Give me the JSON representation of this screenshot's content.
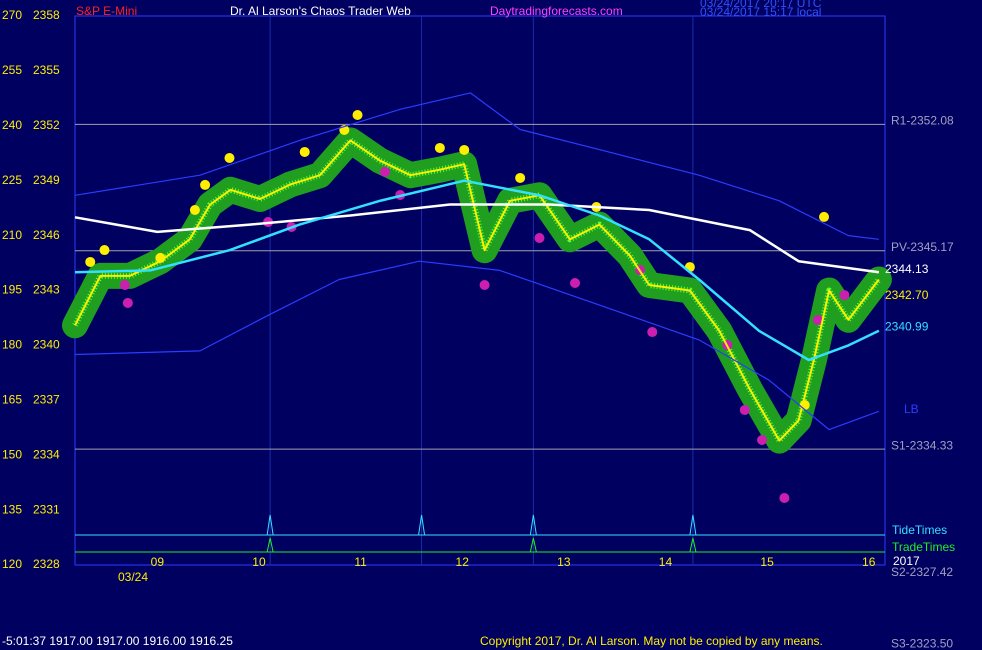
{
  "chart_data": {
    "type": "line",
    "header": {
      "symbol": "S&P E-Mini",
      "title": "Dr. Al Larson's Chaos Trader Web",
      "site": "Daytradingforecasts.com",
      "utc_time": "03/24/2017 20:17 UTC",
      "local_time": "03/24/2017 15:17 local"
    },
    "date_label": "03/24",
    "year_label": "2017",
    "xlim": [
      8.19,
      16.16
    ],
    "xticks": [
      {
        "value": 9,
        "label": "09"
      },
      10,
      11,
      12,
      13,
      14,
      15,
      16
    ],
    "ylim": [
      2328,
      2358
    ],
    "yticks": [
      2358,
      2355,
      2352,
      2349,
      2346,
      2343,
      2340,
      2337,
      2334,
      2331,
      2328
    ],
    "y2lim": [
      120,
      270
    ],
    "y2ticks": [
      270,
      255,
      240,
      225,
      210,
      195,
      180,
      165,
      150,
      135,
      120
    ],
    "series": [
      {
        "color": "#1f9e1f",
        "style": "halo",
        "x": [
          8.19,
          8.44,
          8.73,
          9.03,
          9.32,
          9.52,
          9.72,
          10.01,
          10.31,
          10.6,
          10.9,
          11.19,
          11.49,
          11.78,
          12.02,
          12.22,
          12.47,
          12.76,
          13.06,
          13.35,
          13.65,
          13.84,
          14.24,
          14.53,
          14.83,
          15.12,
          15.31,
          15.46,
          15.61,
          15.8,
          16.1
        ],
        "values": [
          2341.1,
          2343.8,
          2343.8,
          2344.6,
          2345.8,
          2347.7,
          2348.5,
          2348.0,
          2348.8,
          2349.3,
          2351.2,
          2350.1,
          2349.3,
          2349.6,
          2349.9,
          2345.2,
          2347.9,
          2348.2,
          2345.8,
          2346.6,
          2344.9,
          2343.3,
          2343.0,
          2340.8,
          2337.6,
          2334.8,
          2335.9,
          2339.2,
          2343.0,
          2341.4,
          2343.6
        ]
      },
      {
        "color": "#ffffff",
        "x": [
          8.19,
          9.0,
          9.91,
          10.9,
          11.88,
          12.86,
          13.84,
          14.83,
          15.31,
          16.1
        ],
        "values": [
          2347.0,
          2346.2,
          2346.6,
          2347.1,
          2347.7,
          2347.7,
          2347.4,
          2346.3,
          2344.6,
          2344.0
        ]
      },
      {
        "color": "#33e0ff",
        "x": [
          8.19,
          8.93,
          9.71,
          10.4,
          11.19,
          12.02,
          12.76,
          13.35,
          13.84,
          14.33,
          14.92,
          15.41,
          15.8,
          16.1
        ],
        "values": [
          2344.0,
          2344.1,
          2345.2,
          2346.6,
          2347.9,
          2349.0,
          2348.2,
          2347.1,
          2345.8,
          2343.6,
          2340.8,
          2339.2,
          2340.0,
          2340.8
        ]
      },
      {
        "color": "#2a3cff",
        "x": [
          8.19,
          9.42,
          10.4,
          11.39,
          12.08,
          12.57,
          13.35,
          14.33,
          15.12,
          15.8,
          16.1
        ],
        "values": [
          2348.2,
          2349.3,
          2351.2,
          2352.9,
          2353.8,
          2351.8,
          2350.7,
          2349.3,
          2347.9,
          2346.0,
          2345.8
        ]
      },
      {
        "color": "#2a3cff",
        "x": [
          8.19,
          9.42,
          10.11,
          10.79,
          11.58,
          12.37,
          13.35,
          14.33,
          15.02,
          15.61,
          16.1
        ],
        "values": [
          2339.5,
          2339.7,
          2341.7,
          2343.6,
          2344.6,
          2344.1,
          2342.2,
          2340.3,
          2338.1,
          2335.4,
          2336.4
        ]
      }
    ],
    "dots": [
      {
        "color": "#ffee00",
        "x": [
          8.34,
          8.48,
          9.03,
          9.37,
          9.47,
          9.71,
          10.45,
          10.84,
          10.97,
          11.78,
          12.02,
          12.57,
          13.32,
          14.24,
          15.37,
          15.56
        ],
        "values": [
          2344.56,
          2345.21,
          2344.78,
          2347.4,
          2348.77,
          2350.24,
          2350.57,
          2351.77,
          2352.59,
          2350.79,
          2350.68,
          2349.15,
          2347.56,
          2344.28,
          2336.74,
          2347.02
        ]
      },
      {
        "color": "#cc1fb0",
        "x": [
          8.68,
          8.71,
          10.09,
          10.32,
          11.24,
          11.39,
          12.22,
          12.76,
          13.11,
          13.75,
          13.87,
          14.61,
          14.78,
          14.95,
          15.17,
          15.5,
          15.76
        ],
        "values": [
          2343.3,
          2342.32,
          2346.74,
          2346.47,
          2349.48,
          2348.22,
          2343.3,
          2345.87,
          2343.41,
          2344.12,
          2340.73,
          2340.02,
          2336.47,
          2334.83,
          2331.66,
          2341.39,
          2342.75
        ]
      }
    ],
    "levels": [
      {
        "label": "R1-2352.08",
        "value": 2352.08
      },
      {
        "label": "PV-2345.17",
        "value": 2345.17
      },
      {
        "label": "S1-2334.33",
        "value": 2334.33
      },
      {
        "label": "S2-2327.42",
        "value": 2327.42
      },
      {
        "label": "S3-2323.50",
        "value": 2323.5
      }
    ],
    "price_tags": [
      {
        "label": "2344.13",
        "value": 2344.13,
        "color": "#ffffff"
      },
      {
        "label": "2342.70",
        "value": 2342.7,
        "color": "#ffee00"
      },
      {
        "label": "2340.99",
        "value": 2340.99,
        "color": "#33e0ff"
      }
    ],
    "band_label": "LB",
    "tide_label": "TideTimes",
    "tide_times": [
      10.11,
      11.6,
      12.7,
      14.27
    ],
    "trade_label": "TradeTimes",
    "trade_times": [
      10.11,
      12.7,
      14.27
    ],
    "status": "-5:01:37  1917.00 1917.00 1916.00 1916.25",
    "copyright": "Copyright 2017, Dr. Al Larson. May not be copied by any means."
  }
}
